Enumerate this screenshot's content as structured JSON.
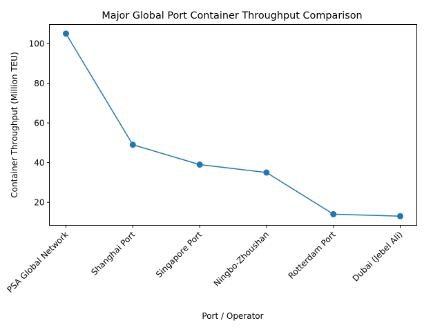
{
  "chart_data": {
    "type": "line",
    "title": "Major Global Port Container Throughput Comparison",
    "xlabel": "Port / Operator",
    "ylabel": "Container Throughput (Million TEU)",
    "categories": [
      "PSA Global Network",
      "Shanghai Port",
      "Singapore Port",
      "Ningbo-Zhoushan",
      "Rotterdam Port",
      "Dubai (Jebel Ali)"
    ],
    "series": [
      {
        "name": "Container Throughput",
        "values": [
          105,
          49,
          39,
          35,
          14,
          13
        ],
        "color": "#1f77b4"
      }
    ],
    "ylim": [
      8.4,
      109.6
    ],
    "yticks": [
      20,
      40,
      60,
      80,
      100
    ],
    "grid": false,
    "legend": "none"
  }
}
